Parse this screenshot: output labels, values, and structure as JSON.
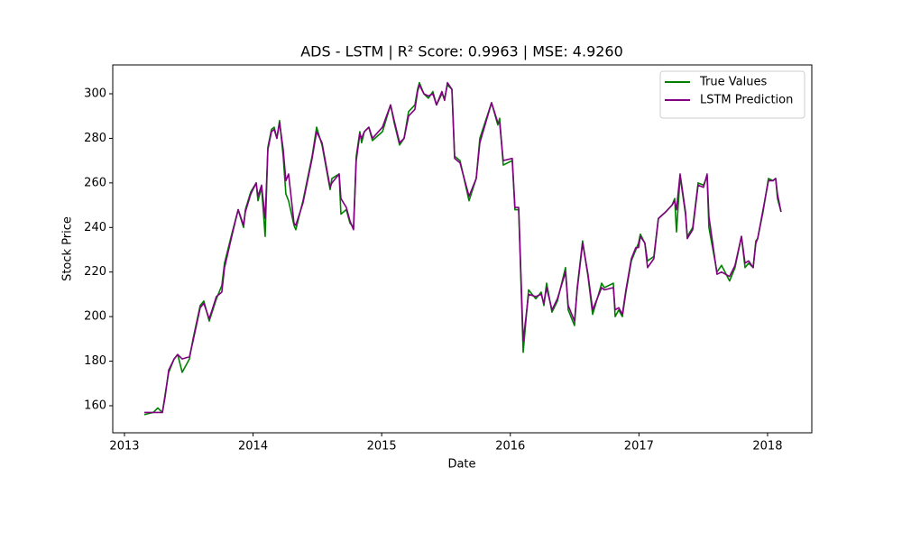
{
  "chart_data": {
    "type": "line",
    "title": "ADS - LSTM | R² Score: 0.9963 | MSE: 4.9260",
    "x_label": "Date",
    "y_label": "Stock Price",
    "xlim": [
      2012.909,
      2018.344
    ],
    "xticks": [
      2013,
      2014,
      2015,
      2016,
      2017,
      2018
    ],
    "ylim": [
      147.86,
      312.95
    ],
    "yticks": [
      160,
      180,
      200,
      220,
      240,
      260,
      280,
      300
    ],
    "grid": false,
    "legend": "upper right",
    "x": [
      2013.154,
      2013.224,
      2013.259,
      2013.295,
      2013.316,
      2013.344,
      2013.386,
      2013.414,
      2013.449,
      2013.505,
      2013.533,
      2013.589,
      2013.617,
      2013.659,
      2013.715,
      2013.757,
      2013.778,
      2013.834,
      2013.884,
      2013.926,
      2013.94,
      2013.982,
      2014.024,
      2014.038,
      2014.066,
      2014.094,
      2014.115,
      2014.143,
      2014.164,
      2014.185,
      2014.206,
      2014.234,
      2014.255,
      2014.276,
      2014.318,
      2014.332,
      2014.388,
      2014.459,
      2014.494,
      2014.536,
      2014.599,
      2014.613,
      2014.669,
      2014.683,
      2014.725,
      2014.753,
      2014.781,
      2014.802,
      2014.83,
      2014.844,
      2014.865,
      2014.9,
      2014.928,
      2015.006,
      2015.069,
      2015.097,
      2015.139,
      2015.174,
      2015.209,
      2015.258,
      2015.279,
      2015.293,
      2015.328,
      2015.363,
      2015.398,
      2015.426,
      2015.468,
      2015.489,
      2015.511,
      2015.546,
      2015.567,
      2015.609,
      2015.679,
      2015.735,
      2015.763,
      2015.854,
      2015.903,
      2015.917,
      2015.945,
      2016.015,
      2016.036,
      2016.065,
      2016.1,
      2016.142,
      2016.198,
      2016.24,
      2016.261,
      2016.282,
      2016.324,
      2016.366,
      2016.429,
      2016.45,
      2016.499,
      2016.52,
      2016.562,
      2016.604,
      2016.64,
      2016.696,
      2016.71,
      2016.731,
      2016.801,
      2016.815,
      2016.843,
      2016.871,
      2016.899,
      2016.941,
      2016.976,
      2016.997,
      2017.011,
      2017.046,
      2017.067,
      2017.116,
      2017.151,
      2017.208,
      2017.257,
      2017.278,
      2017.292,
      2017.32,
      2017.362,
      2017.376,
      2017.418,
      2017.46,
      2017.502,
      2017.53,
      2017.544,
      2017.607,
      2017.642,
      2017.705,
      2017.747,
      2017.797,
      2017.825,
      2017.853,
      2017.888,
      2017.909,
      2017.923,
      2017.965,
      2018.007,
      2018.042,
      2018.063,
      2018.077,
      2018.105
    ],
    "series": [
      {
        "name": "True Values",
        "color": "#008000",
        "values": [
          156,
          157,
          159,
          157,
          165,
          175,
          181,
          183,
          175,
          181,
          190,
          205,
          207,
          198,
          208,
          214,
          224,
          237,
          248,
          240,
          248,
          256,
          260,
          252,
          258,
          236,
          276,
          284,
          285,
          280,
          288,
          272,
          255,
          252,
          241,
          239,
          252,
          272,
          285,
          277,
          257,
          262,
          264,
          246,
          248,
          242,
          240,
          272,
          283,
          278,
          283,
          285,
          279,
          283,
          295,
          287,
          277,
          280,
          292,
          295,
          302,
          305,
          300,
          298,
          301,
          295,
          300,
          298,
          304,
          302,
          272,
          270,
          252,
          262,
          280,
          296,
          286,
          289,
          268,
          270,
          248,
          248,
          184,
          212,
          208,
          211,
          205,
          215,
          202,
          207,
          222,
          203,
          196,
          213,
          234,
          218,
          201,
          212,
          215,
          213,
          215,
          200,
          203,
          200,
          211,
          225,
          230,
          233,
          237,
          233,
          225,
          227,
          244,
          247,
          250,
          253,
          238,
          263,
          246,
          236,
          240,
          260,
          259,
          263,
          240,
          220,
          223,
          216,
          222,
          236,
          222,
          224,
          222,
          234,
          235,
          247,
          262,
          261,
          262,
          253,
          247
        ]
      },
      {
        "name": "LSTM Prediction",
        "color": "#800080",
        "values": [
          157,
          157,
          157,
          157,
          164,
          176,
          181,
          183,
          181,
          182,
          189,
          204,
          206,
          199,
          209,
          211,
          222,
          236,
          248,
          241,
          247,
          255,
          260,
          254,
          259,
          244,
          275,
          283,
          284,
          280,
          287,
          275,
          261,
          264,
          242,
          241,
          251,
          271,
          283,
          278,
          258,
          260,
          264,
          253,
          249,
          243,
          239,
          270,
          282,
          280,
          283,
          285,
          280,
          285,
          295,
          288,
          278,
          280,
          290,
          293,
          301,
          304,
          300,
          299,
          300,
          295,
          301,
          297,
          305,
          302,
          271,
          269,
          254,
          262,
          278,
          296,
          287,
          287,
          270,
          271,
          249,
          249,
          189,
          210,
          209,
          210,
          206,
          213,
          203,
          208,
          220,
          205,
          198,
          212,
          233,
          219,
          203,
          211,
          213,
          212,
          213,
          203,
          204,
          201,
          212,
          226,
          231,
          231,
          236,
          233,
          222,
          226,
          244,
          247,
          250,
          252,
          248,
          264,
          247,
          235,
          239,
          259,
          258,
          264,
          245,
          219,
          220,
          218,
          223,
          236,
          224,
          225,
          222,
          233,
          235,
          248,
          261,
          261,
          262,
          255,
          247
        ]
      }
    ]
  }
}
